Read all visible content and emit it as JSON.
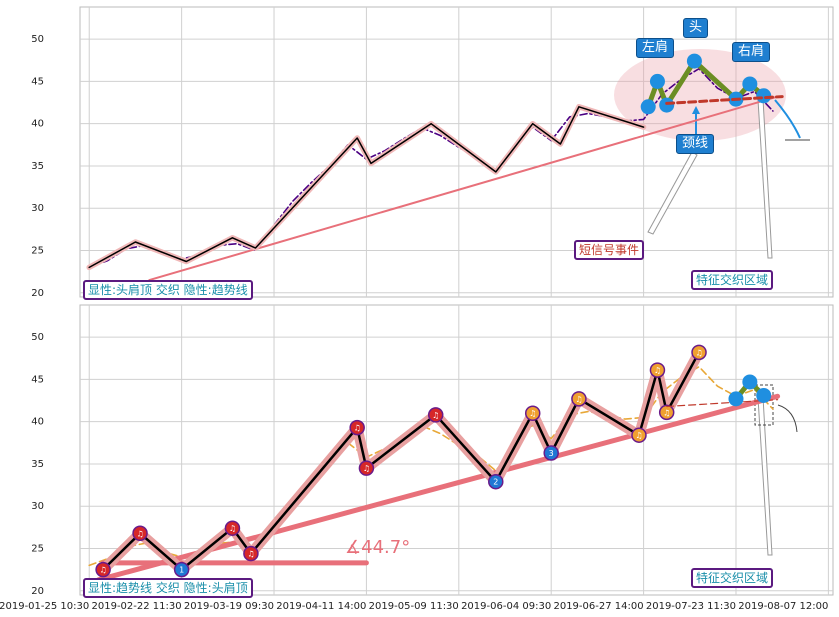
{
  "chart_data": [
    {
      "type": "line",
      "xlim": [
        -2,
        161
      ],
      "xticks": [
        0,
        20,
        40,
        60,
        80,
        100,
        120,
        140,
        160
      ],
      "show_xtick_labels": false,
      "ylim": [
        19.5,
        53.8
      ],
      "yticks": [
        20,
        25,
        30,
        35,
        40,
        45,
        50
      ],
      "grid": true,
      "series": [
        {
          "color": "#4b0082",
          "style": "dashdot",
          "width": 1.6,
          "x": [
            0,
            4,
            8,
            12,
            16,
            20,
            24,
            28,
            32,
            36,
            40,
            44,
            48,
            52,
            56,
            60,
            64,
            68,
            72,
            76,
            80,
            84,
            88,
            92,
            96,
            100,
            104,
            108,
            112,
            116,
            120,
            124,
            128,
            132,
            136,
            140,
            144,
            148
          ],
          "values": [
            23,
            23.8,
            25.2,
            25.6,
            24.6,
            24,
            24.5,
            25.6,
            25.8,
            25,
            28,
            30.8,
            33,
            35,
            37.5,
            35.8,
            36.8,
            38.2,
            39.5,
            38.6,
            37.2,
            36,
            34.2,
            37,
            39.6,
            38,
            40.8,
            41.2,
            40.8,
            40.3,
            40.5,
            43.5,
            45.2,
            46.5,
            44.2,
            43,
            43.8,
            41.5
          ]
        },
        {
          "color": "#e8707a",
          "width": 2,
          "x": [
            13,
            149
          ],
          "values": [
            21.5,
            43.2
          ]
        },
        {
          "color": "#000000",
          "width": 1.5,
          "halo": "#f0b8b8",
          "halo_width": 4,
          "x": [
            0,
            10,
            21,
            31,
            36,
            58,
            61,
            74,
            88,
            96,
            102,
            106,
            120
          ],
          "values": [
            23,
            26,
            23.7,
            26.5,
            25.3,
            38.3,
            35.3,
            40,
            34.3,
            40,
            37.6,
            42,
            39.6
          ]
        },
        {
          "color": "#6b8e23",
          "width": 5,
          "marker_color": "#1f8fe0",
          "x": [
            121,
            123,
            125,
            131,
            140,
            143,
            146
          ],
          "values": [
            42,
            45,
            42.2,
            47.4,
            42.9,
            44.7,
            43.3
          ]
        },
        {
          "color": "#c0392b",
          "style": "dashed",
          "width": 3,
          "x": [
            125,
            150
          ],
          "values": [
            42.4,
            43.2
          ]
        }
      ],
      "annotations": [
        "左肩",
        "头",
        "右肩",
        "颈线",
        "短信号事件",
        "特征交织区域",
        "显性:头肩顶 交织 隐性:趋势线"
      ]
    },
    {
      "type": "line",
      "xlim": [
        -2,
        161
      ],
      "xticks": [
        {
          "value": 0,
          "label": "2019-01-25 10:30"
        },
        {
          "value": 20,
          "label": "2019-02-22 11:30"
        },
        {
          "value": 40,
          "label": "2019-03-19 09:30"
        },
        {
          "value": 60,
          "label": "2019-04-11 14:00"
        },
        {
          "value": 80,
          "label": "2019-05-09 11:30"
        },
        {
          "value": 100,
          "label": "2019-06-04 09:30"
        },
        {
          "value": 120,
          "label": "2019-06-27 14:00"
        },
        {
          "value": 140,
          "label": "2019-07-23 11:30"
        },
        {
          "value": 160,
          "label": "2019-08-07 12:00"
        }
      ],
      "show_xtick_labels": true,
      "ylim": [
        19.5,
        53.8
      ],
      "yticks": [
        20,
        25,
        30,
        35,
        40,
        45,
        50
      ],
      "grid": true,
      "series": [
        {
          "color": "#e8a838",
          "style": "dashed",
          "width": 1.6,
          "x": [
            0,
            4,
            8,
            12,
            16,
            20,
            24,
            28,
            32,
            36,
            40,
            44,
            48,
            52,
            56,
            60,
            64,
            68,
            72,
            76,
            80,
            84,
            88,
            92,
            96,
            100,
            104,
            108,
            112,
            116,
            120,
            124,
            128,
            132,
            136,
            140,
            144,
            148
          ],
          "values": [
            23,
            23.8,
            25.2,
            25.6,
            24.6,
            24,
            24.5,
            25.6,
            25.8,
            25,
            28,
            30.8,
            33,
            35,
            37.5,
            35.8,
            36.8,
            38.2,
            39.5,
            38.6,
            37.2,
            36,
            34.2,
            37,
            39.6,
            38,
            40.8,
            41.2,
            40.8,
            40.3,
            40.5,
            43.5,
            45.2,
            46.5,
            44.2,
            43,
            43.8,
            41.5
          ]
        },
        {
          "color": "#e8707a",
          "width": 5,
          "x": [
            2,
            149
          ],
          "values": [
            21.3,
            43
          ]
        },
        {
          "color": "#e8707a",
          "width": 5,
          "x": [
            3,
            60
          ],
          "values": [
            23.3,
            23.3
          ]
        },
        {
          "color": "#000000",
          "width": 2.5,
          "halo": "#e8a0a0",
          "halo_width": 8,
          "x": [
            3,
            11,
            20,
            31,
            35,
            58,
            60,
            75,
            88,
            96,
            100,
            106,
            119,
            123,
            125,
            132
          ],
          "values": [
            22.5,
            26.8,
            22.5,
            27.4,
            24.4,
            39.3,
            34.5,
            40.8,
            32.9,
            41,
            36.3,
            42.7,
            38.4,
            46.1,
            41.1,
            48.2
          ],
          "marker_colors": [
            "#d62728",
            "#d62728",
            "#1f77d4",
            "#d62728",
            "#d62728",
            "#d62728",
            "#d62728",
            "#d62728",
            "#1f77d4",
            "#f0a030",
            "#1f77d4",
            "#f0a030",
            "#f0a030",
            "#f0a030",
            "#f0a030",
            "#f0a030"
          ],
          "marker_labels": [
            "♫",
            "♫",
            "1",
            "♫",
            "♫",
            "♫",
            "♫",
            "♫",
            "2",
            "♫",
            "3",
            "♫",
            "♫",
            "♫",
            "♫",
            "♫"
          ]
        },
        {
          "color": "#c0392b",
          "style": "dashed",
          "width": 1.2,
          "x": [
            125,
            149
          ],
          "values": [
            41.8,
            42.6
          ]
        },
        {
          "color": "#6b8e23",
          "width": 5,
          "marker_color": "#1f8fe0",
          "x": [
            140,
            143,
            146
          ],
          "values": [
            42.7,
            44.7,
            43.1
          ]
        }
      ],
      "annotations": [
        "显性:趋势线 交织 隐性:头肩顶",
        "特征交织区域",
        "∡44.7°"
      ]
    }
  ]
}
